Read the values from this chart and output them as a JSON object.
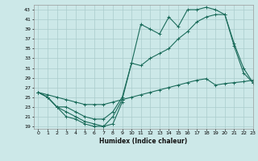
{
  "title": "",
  "xlabel": "Humidex (Indice chaleur)",
  "background_color": "#cce8e8",
  "grid_color": "#aacccc",
  "line_color": "#1a6b5a",
  "hours": [
    0,
    1,
    2,
    3,
    4,
    5,
    6,
    7,
    8,
    9,
    10,
    11,
    12,
    13,
    14,
    15,
    16,
    17,
    18,
    19,
    20,
    21,
    22,
    23
  ],
  "line_min": [
    26,
    25,
    23,
    21,
    20.5,
    19.5,
    19,
    19,
    19.5,
    24,
    null,
    null,
    null,
    null,
    null,
    null,
    null,
    null,
    null,
    null,
    null,
    null,
    null,
    null
  ],
  "line_max": [
    26,
    25,
    23,
    22,
    21,
    20,
    19.5,
    19,
    21,
    24.5,
    32,
    40,
    39,
    38,
    41.5,
    39.5,
    43,
    43,
    43.5,
    43,
    42,
    35.5,
    30,
    28
  ],
  "line_avg": [
    26,
    25,
    23,
    23,
    22,
    21,
    20.5,
    20.5,
    22,
    25,
    32,
    31.5,
    33,
    34,
    35,
    37,
    38.5,
    40.5,
    41.5,
    42,
    42,
    36,
    31,
    28
  ],
  "line_base": [
    26,
    25.5,
    25,
    24.5,
    24,
    23.5,
    23.5,
    23.5,
    24,
    24.5,
    25,
    25.5,
    26,
    26.5,
    27,
    27.5,
    28,
    28.5,
    28.8,
    27.5,
    27.8,
    28,
    28.2,
    28.5
  ],
  "ylim": [
    18.5,
    44
  ],
  "yticks": [
    19,
    21,
    23,
    25,
    27,
    29,
    31,
    33,
    35,
    37,
    39,
    41,
    43
  ],
  "xlim": [
    -0.5,
    23
  ],
  "xticks": [
    0,
    1,
    2,
    3,
    4,
    5,
    6,
    7,
    8,
    9,
    10,
    11,
    12,
    13,
    14,
    15,
    16,
    17,
    18,
    19,
    20,
    21,
    22,
    23
  ]
}
